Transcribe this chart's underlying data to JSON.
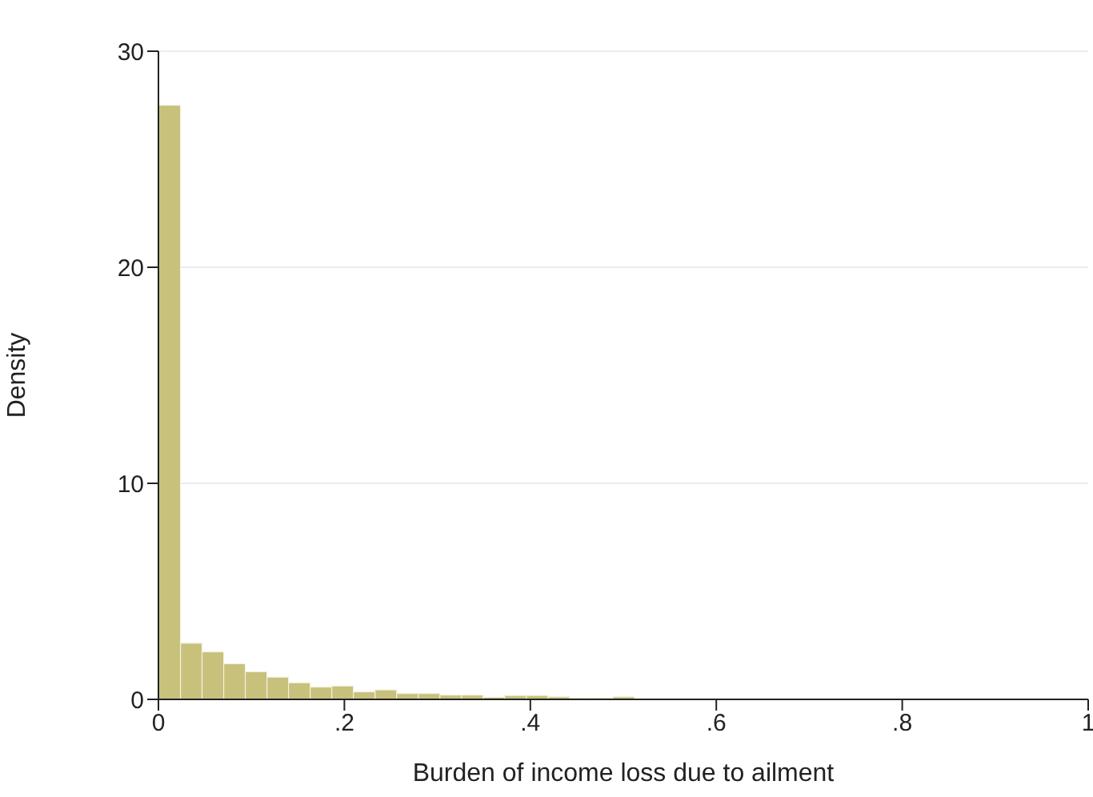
{
  "chart_data": {
    "type": "histogram",
    "xlabel": "Burden of income loss due to ailment",
    "ylabel": "Density",
    "bins": [
      0,
      0.0233,
      0.0465,
      0.0698,
      0.093,
      0.1163,
      0.1395,
      0.1628,
      0.186,
      0.2093,
      0.2326,
      0.2558,
      0.2791,
      0.3023,
      0.3256,
      0.3488,
      0.3721,
      0.3953,
      0.4186,
      0.4419,
      0.4651,
      0.4884,
      0.5116,
      0.5349,
      0.5581,
      0.5814,
      0.6047,
      0.6279,
      0.6512,
      0.6744,
      0.6977,
      0.7209,
      0.7442,
      0.7674,
      0.7907,
      0.814,
      0.8372,
      0.8605,
      0.8837,
      0.907,
      0.9302,
      0.9535,
      0.9767,
      1
    ],
    "values": [
      27.5,
      2.6,
      2.2,
      1.65,
      1.28,
      1.03,
      0.77,
      0.57,
      0.62,
      0.35,
      0.44,
      0.27,
      0.27,
      0.2,
      0.2,
      0.1,
      0.18,
      0.18,
      0.12,
      0.07,
      0.07,
      0.12,
      null,
      null,
      null,
      null,
      null,
      null,
      null,
      null,
      null,
      null,
      null,
      null,
      null,
      null,
      null,
      null,
      null,
      null,
      null,
      null,
      null
    ],
    "color": "#c8c17c",
    "xlim": [
      0,
      1
    ],
    "xticks": [
      0,
      {
        "value": 0.2,
        "label": ".2"
      },
      {
        "value": 0.4,
        "label": ".4"
      },
      {
        "value": 0.6,
        "label": ".6"
      },
      {
        "value": 0.8,
        "label": ".8"
      },
      1
    ],
    "ylim": [
      0,
      30
    ],
    "yticks": [
      0,
      10,
      20,
      30
    ],
    "grid": "y"
  }
}
